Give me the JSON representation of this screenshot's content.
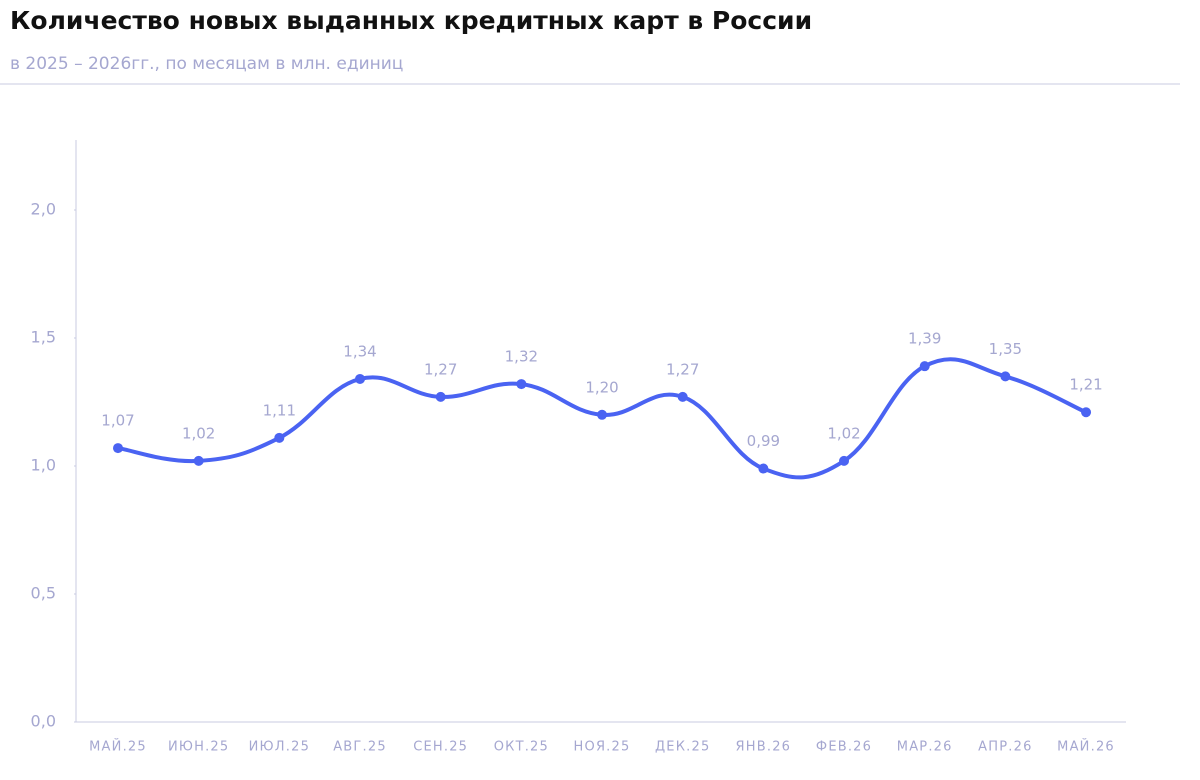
{
  "chart_data": {
    "type": "line",
    "title": "Количество новых выданных кредитных карт в России",
    "subtitle": "в 2025 – 2026гг., по месяцам в млн. единиц",
    "categories": [
      "МАЙ.25",
      "ИЮН.25",
      "ИЮЛ.25",
      "АВГ.25",
      "СЕН.25",
      "ОКТ.25",
      "НОЯ.25",
      "ДЕК.25",
      "ЯНВ.26",
      "ФЕВ.26",
      "МАР.26",
      "АПР.26",
      "МАЙ.26"
    ],
    "series": [
      {
        "color": "#4a63f2",
        "values": [
          1.07,
          1.02,
          1.11,
          1.34,
          1.27,
          1.32,
          1.2,
          1.27,
          0.99,
          1.02,
          1.39,
          1.35,
          1.21
        ],
        "value_labels": [
          "1,07",
          "1,02",
          "1,11",
          "1,34",
          "1,27",
          "1,32",
          "1,20",
          "1,27",
          "0,99",
          "1,02",
          "1,39",
          "1,35",
          "1,21"
        ]
      }
    ],
    "ylim": [
      0,
      2.27
    ],
    "yticks": [
      {
        "value": 0,
        "label": "0,0"
      },
      {
        "value": 0.5,
        "label": "0,5"
      },
      {
        "value": 1,
        "label": "1,0"
      },
      {
        "value": 1.5,
        "label": "1,5"
      },
      {
        "value": 2,
        "label": "2,0"
      }
    ]
  }
}
